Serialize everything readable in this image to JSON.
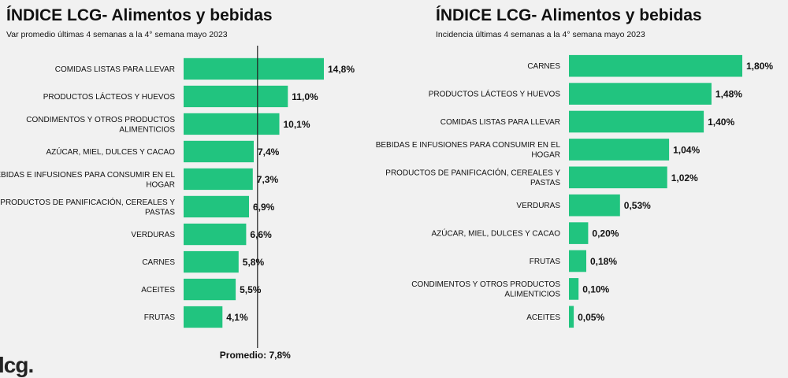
{
  "logo": "lcg.",
  "chart_data": [
    {
      "type": "bar",
      "orientation": "horizontal",
      "title": "ÍNDICE LCG- Alimentos y bebidas",
      "subtitle": "Var promedio últimas 4 semanas a la 4° semana mayo 2023",
      "categories": [
        "COMIDAS LISTAS PARA LLEVAR",
        "PRODUCTOS LÁCTEOS Y HUEVOS",
        "CONDIMENTOS Y OTROS PRODUCTOS ALIMENTICIOS",
        "AZÚCAR, MIEL, DULCES Y CACAO",
        "BEBIDAS E INFUSIONES PARA CONSUMIR EN EL HOGAR",
        "PRODUCTOS DE PANIFICACIÓN, CEREALES Y PASTAS",
        "VERDURAS",
        "CARNES",
        "ACEITES",
        "FRUTAS"
      ],
      "values": [
        14.8,
        11.0,
        10.1,
        7.4,
        7.3,
        6.9,
        6.6,
        5.8,
        5.5,
        4.1
      ],
      "value_labels": [
        "14,8%",
        "11,0%",
        "10,1%",
        "7,4%",
        "7,3%",
        "6,9%",
        "6,6%",
        "5,8%",
        "5,5%",
        "4,1%"
      ],
      "reference_line": {
        "value": 7.8,
        "label": "Promedio: 7,8%"
      },
      "bar_color": "#21c47f"
    },
    {
      "type": "bar",
      "orientation": "horizontal",
      "title": "ÍNDICE LCG- Alimentos y bebidas",
      "subtitle": "Incidencia últimas 4 semanas a la 4° semana mayo 2023",
      "categories": [
        "CARNES",
        "PRODUCTOS LÁCTEOS Y HUEVOS",
        "COMIDAS LISTAS PARA LLEVAR",
        "BEBIDAS E INFUSIONES PARA CONSUMIR EN EL HOGAR",
        "PRODUCTOS DE PANIFICACIÓN, CEREALES Y PASTAS",
        "VERDURAS",
        "AZÚCAR, MIEL, DULCES Y CACAO",
        "FRUTAS",
        "CONDIMENTOS Y OTROS PRODUCTOS ALIMENTICIOS",
        "ACEITES"
      ],
      "values": [
        1.8,
        1.48,
        1.4,
        1.04,
        1.02,
        0.53,
        0.2,
        0.18,
        0.1,
        0.05
      ],
      "value_labels": [
        "1,80%",
        "1,48%",
        "1,40%",
        "1,04%",
        "1,02%",
        "0,53%",
        "0,20%",
        "0,18%",
        "0,10%",
        "0,05%"
      ],
      "bar_color": "#21c47f"
    }
  ]
}
